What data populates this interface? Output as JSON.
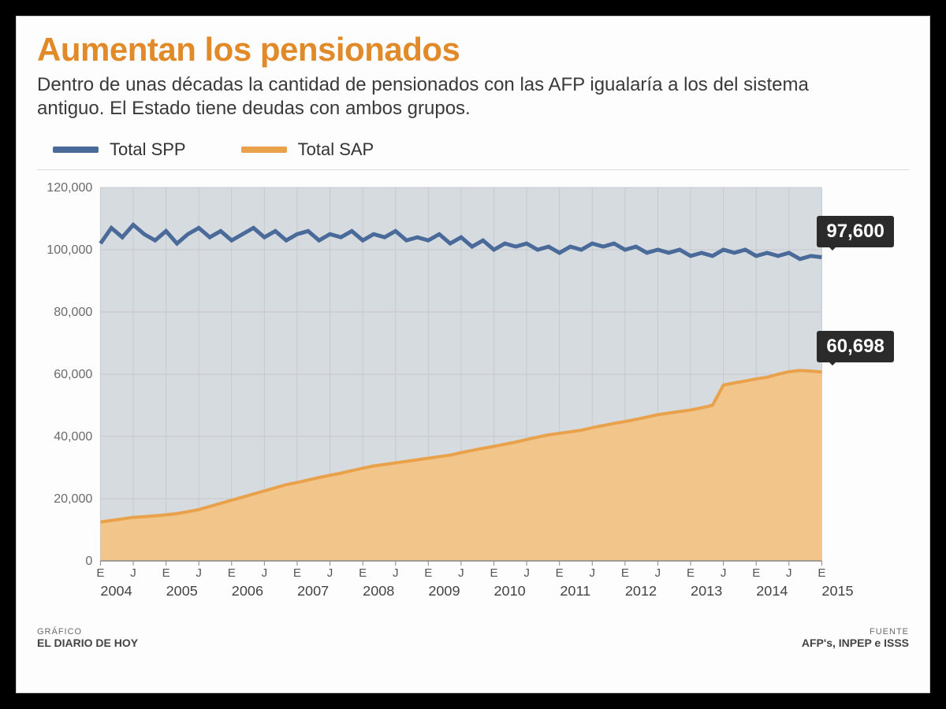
{
  "title": "Aumentan los pensionados",
  "subtitle": "Dentro de unas décadas la cantidad de pensionados con las AFP igualaría a los del sistema antiguo. El Estado tiene deudas con ambos grupos.",
  "legend": {
    "spp": {
      "label": "Total SPP",
      "color": "#4a6a9a"
    },
    "sap": {
      "label": "Total SAP",
      "color": "#e9a24b"
    }
  },
  "chart": {
    "type": "area+line",
    "background_color": "#fdfdfd",
    "plot_background": "#d6dbe0",
    "grid_color": "#c5cace",
    "sap_fill": "#f2c58a",
    "sap_line": "#e9a24b",
    "spp_line": "#4a6a9a",
    "ylim": [
      0,
      120000
    ],
    "yticks": [
      0,
      20000,
      40000,
      60000,
      80000,
      100000,
      120000
    ],
    "ytick_labels": [
      "0",
      "20,000",
      "40,000",
      "60,000",
      "80,000",
      "100,000",
      "120,000"
    ],
    "x_years": [
      "2004",
      "2005",
      "2006",
      "2007",
      "2008",
      "2009",
      "2010",
      "2011",
      "2012",
      "2013",
      "2014",
      "2015"
    ],
    "x_sub": [
      "E",
      "J"
    ],
    "line_width_spp": 5,
    "line_width_sap": 4,
    "series": {
      "spp": [
        102000,
        107000,
        104000,
        108000,
        105000,
        103000,
        106000,
        102000,
        105000,
        107000,
        104000,
        106000,
        103000,
        105000,
        107000,
        104000,
        106000,
        103000,
        105000,
        106000,
        103000,
        105000,
        104000,
        106000,
        103000,
        105000,
        104000,
        106000,
        103000,
        104000,
        103000,
        105000,
        102000,
        104000,
        101000,
        103000,
        100000,
        102000,
        101000,
        102000,
        100000,
        101000,
        99000,
        101000,
        100000,
        102000,
        101000,
        102000,
        100000,
        101000,
        99000,
        100000,
        99000,
        100000,
        98000,
        99000,
        98000,
        100000,
        99000,
        100000,
        98000,
        99000,
        98000,
        99000,
        97000,
        98000,
        97600
      ],
      "sap": [
        12500,
        13000,
        13500,
        14000,
        14200,
        14500,
        14800,
        15200,
        15800,
        16500,
        17500,
        18500,
        19500,
        20500,
        21500,
        22500,
        23500,
        24500,
        25200,
        26000,
        26800,
        27500,
        28200,
        29000,
        29800,
        30500,
        31000,
        31500,
        32000,
        32500,
        33000,
        33500,
        34000,
        34800,
        35500,
        36200,
        36800,
        37500,
        38200,
        39000,
        39800,
        40500,
        41000,
        41500,
        42000,
        42800,
        43500,
        44200,
        44800,
        45500,
        46200,
        47000,
        47500,
        48000,
        48500,
        49200,
        50000,
        56500,
        57200,
        57800,
        58500,
        59000,
        60000,
        60800,
        61200,
        61000,
        60698
      ]
    },
    "n_points": 67,
    "callouts": {
      "spp": {
        "text": "97,600"
      },
      "sap": {
        "text": "60,698"
      }
    }
  },
  "footer": {
    "left_label": "GRÁFICO",
    "left_value": "EL DIARIO DE HOY",
    "right_label": "FUENTE",
    "right_value": "AFP's, INPEP e ISSS"
  }
}
